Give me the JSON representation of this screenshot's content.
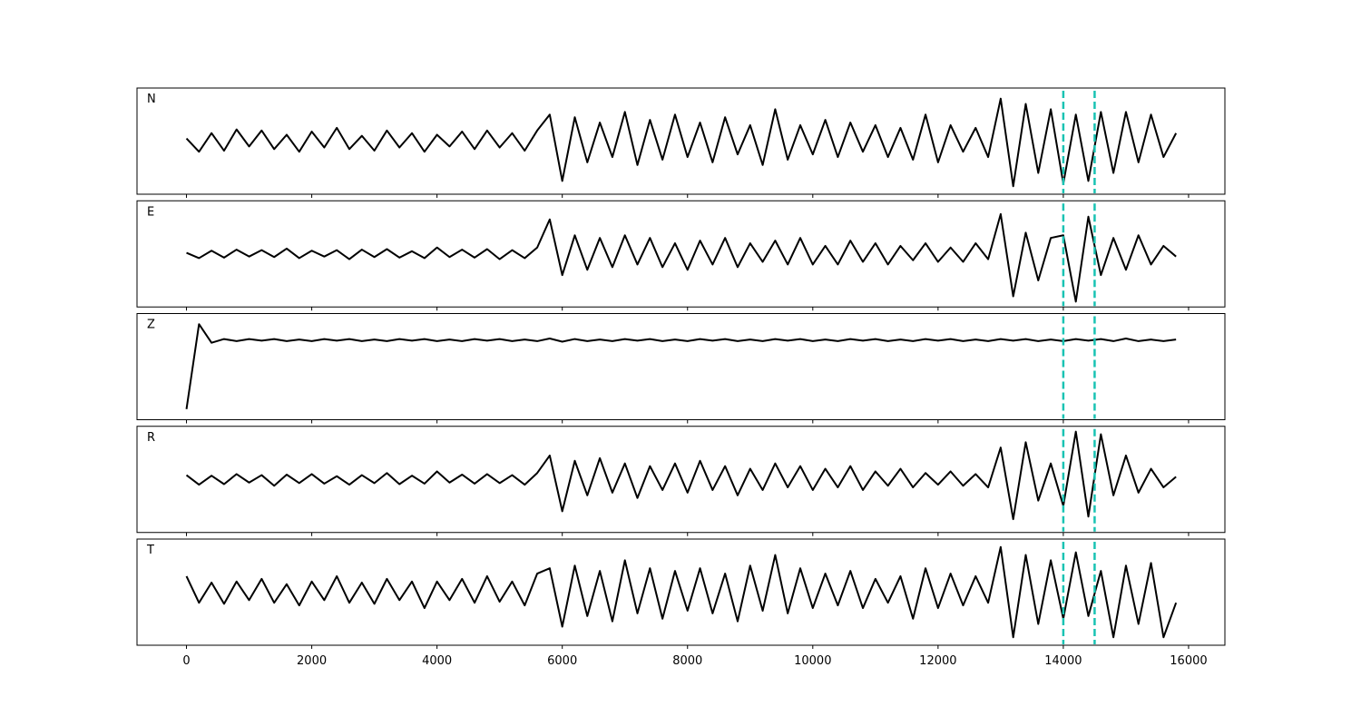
{
  "chart_data": [
    {
      "type": "line",
      "label": "N",
      "color": "#000000",
      "marker_color": "#19c3b3",
      "markers": [
        14000,
        14500
      ],
      "xlim": [
        -790,
        16580
      ],
      "ylim": [
        -1,
        1
      ],
      "xticks": [
        0,
        2000,
        4000,
        6000,
        8000,
        10000,
        12000,
        14000,
        16000
      ],
      "x": [
        0,
        200,
        400,
        600,
        800,
        1000,
        1200,
        1400,
        1600,
        1800,
        2000,
        2200,
        2400,
        2600,
        2800,
        3000,
        3200,
        3400,
        3600,
        3800,
        4000,
        4200,
        4400,
        4600,
        4800,
        5000,
        5200,
        5400,
        5600,
        5800,
        6000,
        6200,
        6400,
        6600,
        6800,
        7000,
        7200,
        7400,
        7600,
        7800,
        8000,
        8200,
        8400,
        8600,
        8800,
        9000,
        9200,
        9400,
        9600,
        9800,
        10000,
        10200,
        10400,
        10600,
        10800,
        11000,
        11200,
        11400,
        11600,
        11800,
        12000,
        12200,
        12400,
        12600,
        12800,
        13000,
        13200,
        13400,
        13600,
        13800,
        14000,
        14200,
        14400,
        14600,
        14800,
        15000,
        15200,
        15400,
        15600,
        15800
      ],
      "values": [
        0.05,
        -0.2,
        0.15,
        -0.18,
        0.22,
        -0.1,
        0.2,
        -0.15,
        0.12,
        -0.2,
        0.18,
        -0.12,
        0.25,
        -0.15,
        0.1,
        -0.18,
        0.2,
        -0.12,
        0.15,
        -0.2,
        0.12,
        -0.1,
        0.18,
        -0.15,
        0.2,
        -0.12,
        0.15,
        -0.18,
        0.2,
        0.5,
        -0.75,
        0.45,
        -0.4,
        0.35,
        -0.3,
        0.55,
        -0.45,
        0.4,
        -0.35,
        0.5,
        -0.3,
        0.35,
        -0.4,
        0.45,
        -0.25,
        0.3,
        -0.45,
        0.6,
        -0.35,
        0.3,
        -0.25,
        0.4,
        -0.3,
        0.35,
        -0.2,
        0.3,
        -0.3,
        0.25,
        -0.35,
        0.5,
        -0.4,
        0.3,
        -0.2,
        0.25,
        -0.3,
        0.8,
        -0.85,
        0.7,
        -0.6,
        0.6,
        -0.8,
        0.5,
        -0.75,
        0.55,
        -0.6,
        0.55,
        -0.4,
        0.5,
        -0.3,
        0.15
      ]
    },
    {
      "type": "line",
      "label": "E",
      "color": "#000000",
      "marker_color": "#19c3b3",
      "markers": [
        14000,
        14500
      ],
      "xlim": [
        -790,
        16580
      ],
      "ylim": [
        -1,
        1
      ],
      "xticks": [
        0,
        2000,
        4000,
        6000,
        8000,
        10000,
        12000,
        14000,
        16000
      ],
      "x": [
        0,
        200,
        400,
        600,
        800,
        1000,
        1200,
        1400,
        1600,
        1800,
        2000,
        2200,
        2400,
        2600,
        2800,
        3000,
        3200,
        3400,
        3600,
        3800,
        4000,
        4200,
        4400,
        4600,
        4800,
        5000,
        5200,
        5400,
        5600,
        5800,
        6000,
        6200,
        6400,
        6600,
        6800,
        7000,
        7200,
        7400,
        7600,
        7800,
        8000,
        8200,
        8400,
        8600,
        8800,
        9000,
        9200,
        9400,
        9600,
        9800,
        10000,
        10200,
        10400,
        10600,
        10800,
        11000,
        11200,
        11400,
        11600,
        11800,
        12000,
        12200,
        12400,
        12600,
        12800,
        13000,
        13200,
        13400,
        13600,
        13800,
        14000,
        14200,
        14400,
        14600,
        14800,
        15000,
        15200,
        15400,
        15600,
        15800
      ],
      "values": [
        0.02,
        -0.08,
        0.06,
        -0.07,
        0.08,
        -0.05,
        0.07,
        -0.06,
        0.1,
        -0.08,
        0.06,
        -0.05,
        0.07,
        -0.1,
        0.08,
        -0.06,
        0.09,
        -0.07,
        0.05,
        -0.08,
        0.12,
        -0.06,
        0.08,
        -0.07,
        0.09,
        -0.1,
        0.07,
        -0.08,
        0.12,
        0.65,
        -0.4,
        0.35,
        -0.3,
        0.3,
        -0.25,
        0.35,
        -0.2,
        0.3,
        -0.25,
        0.2,
        -0.3,
        0.25,
        -0.2,
        0.3,
        -0.25,
        0.2,
        -0.15,
        0.25,
        -0.2,
        0.3,
        -0.2,
        0.15,
        -0.2,
        0.25,
        -0.15,
        0.2,
        -0.2,
        0.15,
        -0.12,
        0.2,
        -0.15,
        0.12,
        -0.15,
        0.2,
        -0.1,
        0.75,
        -0.8,
        0.4,
        -0.5,
        0.3,
        0.35,
        -0.9,
        0.7,
        -0.4,
        0.3,
        -0.3,
        0.35,
        -0.2,
        0.15,
        -0.05
      ]
    },
    {
      "type": "line",
      "label": "Z",
      "color": "#000000",
      "marker_color": "#19c3b3",
      "markers": [
        14000,
        14500
      ],
      "xlim": [
        -790,
        16580
      ],
      "ylim": [
        -1.5,
        0.5
      ],
      "xticks": [
        0,
        2000,
        4000,
        6000,
        8000,
        10000,
        12000,
        14000,
        16000
      ],
      "x": [
        0,
        200,
        400,
        600,
        800,
        1000,
        1200,
        1400,
        1600,
        1800,
        2000,
        2200,
        2400,
        2600,
        2800,
        3000,
        3200,
        3400,
        3600,
        3800,
        4000,
        4200,
        4400,
        4600,
        4800,
        5000,
        5200,
        5400,
        5600,
        5800,
        6000,
        6200,
        6400,
        6600,
        6800,
        7000,
        7200,
        7400,
        7600,
        7800,
        8000,
        8200,
        8400,
        8600,
        8800,
        9000,
        9200,
        9400,
        9600,
        9800,
        10000,
        10200,
        10400,
        10600,
        10800,
        11000,
        11200,
        11400,
        11600,
        11800,
        12000,
        12200,
        12400,
        12600,
        12800,
        13000,
        13200,
        13400,
        13600,
        13800,
        14000,
        14200,
        14400,
        14600,
        14800,
        15000,
        15200,
        15400,
        15600,
        15800
      ],
      "values": [
        -1.3,
        0.3,
        -0.05,
        0.02,
        -0.02,
        0.02,
        -0.01,
        0.02,
        -0.02,
        0.01,
        -0.02,
        0.02,
        -0.01,
        0.02,
        -0.02,
        0.01,
        -0.02,
        0.02,
        -0.01,
        0.02,
        -0.02,
        0.01,
        -0.02,
        0.02,
        -0.01,
        0.02,
        -0.02,
        0.01,
        -0.02,
        0.03,
        -0.03,
        0.02,
        -0.02,
        0.01,
        -0.02,
        0.02,
        -0.01,
        0.02,
        -0.02,
        0.01,
        -0.02,
        0.02,
        -0.01,
        0.02,
        -0.02,
        0.01,
        -0.02,
        0.02,
        -0.01,
        0.02,
        -0.02,
        0.01,
        -0.02,
        0.02,
        -0.01,
        0.02,
        -0.02,
        0.01,
        -0.02,
        0.02,
        -0.01,
        0.02,
        -0.02,
        0.01,
        -0.02,
        0.02,
        -0.01,
        0.02,
        -0.02,
        0.01,
        -0.02,
        0.02,
        -0.01,
        0.02,
        -0.02,
        0.03,
        -0.02,
        0.01,
        -0.02,
        0.01
      ]
    },
    {
      "type": "line",
      "label": "R",
      "color": "#000000",
      "marker_color": "#19c3b3",
      "markers": [
        14000,
        14500
      ],
      "xlim": [
        -790,
        16580
      ],
      "ylim": [
        -1,
        1
      ],
      "xticks": [
        0,
        2000,
        4000,
        6000,
        8000,
        10000,
        12000,
        14000,
        16000
      ],
      "x": [
        0,
        200,
        400,
        600,
        800,
        1000,
        1200,
        1400,
        1600,
        1800,
        2000,
        2200,
        2400,
        2600,
        2800,
        3000,
        3200,
        3400,
        3600,
        3800,
        4000,
        4200,
        4400,
        4600,
        4800,
        5000,
        5200,
        5400,
        5600,
        5800,
        6000,
        6200,
        6400,
        6600,
        6800,
        7000,
        7200,
        7400,
        7600,
        7800,
        8000,
        8200,
        8400,
        8600,
        8800,
        9000,
        9200,
        9400,
        9600,
        9800,
        10000,
        10200,
        10400,
        10600,
        10800,
        11000,
        11200,
        11400,
        11600,
        11800,
        12000,
        12200,
        12400,
        12600,
        12800,
        13000,
        13200,
        13400,
        13600,
        13800,
        14000,
        14200,
        14400,
        14600,
        14800,
        15000,
        15200,
        15400,
        15600,
        15800
      ],
      "values": [
        0.08,
        -0.1,
        0.07,
        -0.09,
        0.1,
        -0.06,
        0.08,
        -0.12,
        0.09,
        -0.07,
        0.1,
        -0.08,
        0.06,
        -0.1,
        0.08,
        -0.07,
        0.12,
        -0.09,
        0.07,
        -0.08,
        0.15,
        -0.06,
        0.09,
        -0.08,
        0.1,
        -0.07,
        0.08,
        -0.1,
        0.12,
        0.45,
        -0.6,
        0.35,
        -0.3,
        0.4,
        -0.25,
        0.3,
        -0.35,
        0.25,
        -0.2,
        0.3,
        -0.25,
        0.35,
        -0.2,
        0.25,
        -0.3,
        0.2,
        -0.2,
        0.3,
        -0.15,
        0.25,
        -0.2,
        0.2,
        -0.15,
        0.25,
        -0.2,
        0.15,
        -0.12,
        0.2,
        -0.15,
        0.12,
        -0.1,
        0.15,
        -0.12,
        0.1,
        -0.15,
        0.6,
        -0.75,
        0.7,
        -0.4,
        0.3,
        -0.5,
        0.9,
        -0.7,
        0.85,
        -0.3,
        0.45,
        -0.25,
        0.2,
        -0.15,
        0.05
      ]
    },
    {
      "type": "line",
      "label": "T",
      "color": "#000000",
      "marker_color": "#19c3b3",
      "markers": [
        14000,
        14500
      ],
      "xlim": [
        -790,
        16580
      ],
      "ylim": [
        -1,
        1
      ],
      "xticks": [
        0,
        2000,
        4000,
        6000,
        8000,
        10000,
        12000,
        14000,
        16000
      ],
      "x": [
        0,
        200,
        400,
        600,
        800,
        1000,
        1200,
        1400,
        1600,
        1800,
        2000,
        2200,
        2400,
        2600,
        2800,
        3000,
        3200,
        3400,
        3600,
        3800,
        4000,
        4200,
        4400,
        4600,
        4800,
        5000,
        5200,
        5400,
        5600,
        5800,
        6000,
        6200,
        6400,
        6600,
        6800,
        7000,
        7200,
        7400,
        7600,
        7800,
        8000,
        8200,
        8400,
        8600,
        8800,
        9000,
        9200,
        9400,
        9600,
        9800,
        10000,
        10200,
        10400,
        10600,
        10800,
        11000,
        11200,
        11400,
        11600,
        11800,
        12000,
        12200,
        12400,
        12600,
        12800,
        13000,
        13200,
        13400,
        13600,
        13800,
        14000,
        14200,
        14400,
        14600,
        14800,
        15000,
        15200,
        15400,
        15600,
        15800
      ],
      "values": [
        0.3,
        -0.2,
        0.18,
        -0.22,
        0.2,
        -0.15,
        0.25,
        -0.2,
        0.15,
        -0.25,
        0.2,
        -0.15,
        0.3,
        -0.2,
        0.18,
        -0.22,
        0.25,
        -0.15,
        0.2,
        -0.3,
        0.2,
        -0.15,
        0.25,
        -0.2,
        0.3,
        -0.18,
        0.2,
        -0.25,
        0.35,
        0.45,
        -0.65,
        0.5,
        -0.45,
        0.4,
        -0.55,
        0.6,
        -0.4,
        0.45,
        -0.5,
        0.4,
        -0.35,
        0.45,
        -0.4,
        0.35,
        -0.55,
        0.5,
        -0.35,
        0.7,
        -0.4,
        0.45,
        -0.3,
        0.35,
        -0.25,
        0.4,
        -0.3,
        0.25,
        -0.2,
        0.3,
        -0.5,
        0.45,
        -0.3,
        0.35,
        -0.25,
        0.3,
        -0.2,
        0.85,
        -0.85,
        0.7,
        -0.6,
        0.6,
        -0.5,
        0.75,
        -0.45,
        0.4,
        -0.85,
        0.5,
        -0.6,
        0.55,
        -0.85,
        -0.2
      ]
    }
  ]
}
